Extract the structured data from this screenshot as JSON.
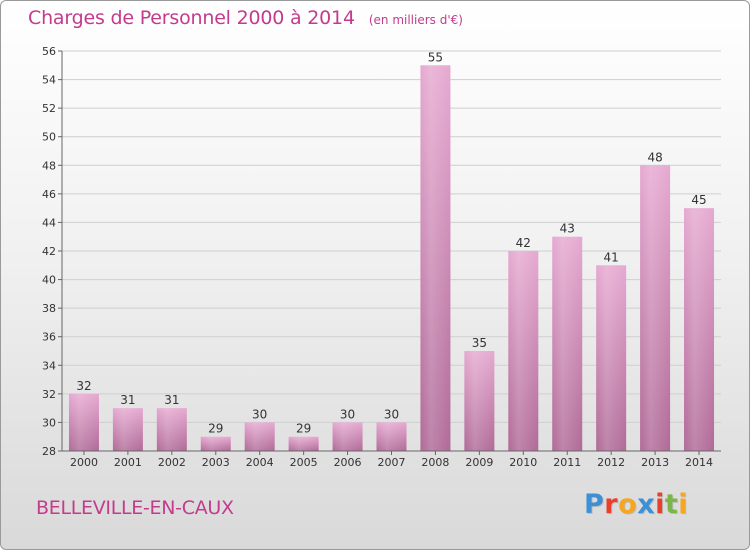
{
  "title": "Charges de Personnel 2000 à 2014",
  "unit_note": "(en milliers d'€)",
  "commune": "BELLEVILLE-EN-CAUX",
  "logo": {
    "text": "Proxiti",
    "letter_colors": [
      "#3d8fd6",
      "#e8402a",
      "#f5a623",
      "#3d8fd6",
      "#e8402a",
      "#7ab648",
      "#f5a623"
    ]
  },
  "colors": {
    "bar": "#d98fbe",
    "bar_dark": "#b8649a",
    "title": "#c43b8e",
    "grid": "#cfcfcf"
  },
  "chart_data": {
    "type": "bar",
    "title": "Charges de Personnel 2000 à 2014",
    "subtitle": "(en milliers d'€)",
    "categories": [
      "2000",
      "2001",
      "2002",
      "2003",
      "2004",
      "2005",
      "2006",
      "2007",
      "2008",
      "2009",
      "2010",
      "2011",
      "2012",
      "2013",
      "2014"
    ],
    "values": [
      32,
      31,
      31,
      29,
      30,
      29,
      30,
      30,
      55,
      35,
      42,
      43,
      41,
      48,
      45
    ],
    "ylim": [
      28,
      56
    ],
    "yticks": [
      28,
      30,
      32,
      34,
      36,
      38,
      40,
      42,
      44,
      46,
      48,
      50,
      52,
      54,
      56
    ],
    "grid": true,
    "xlabel": "",
    "ylabel": ""
  }
}
